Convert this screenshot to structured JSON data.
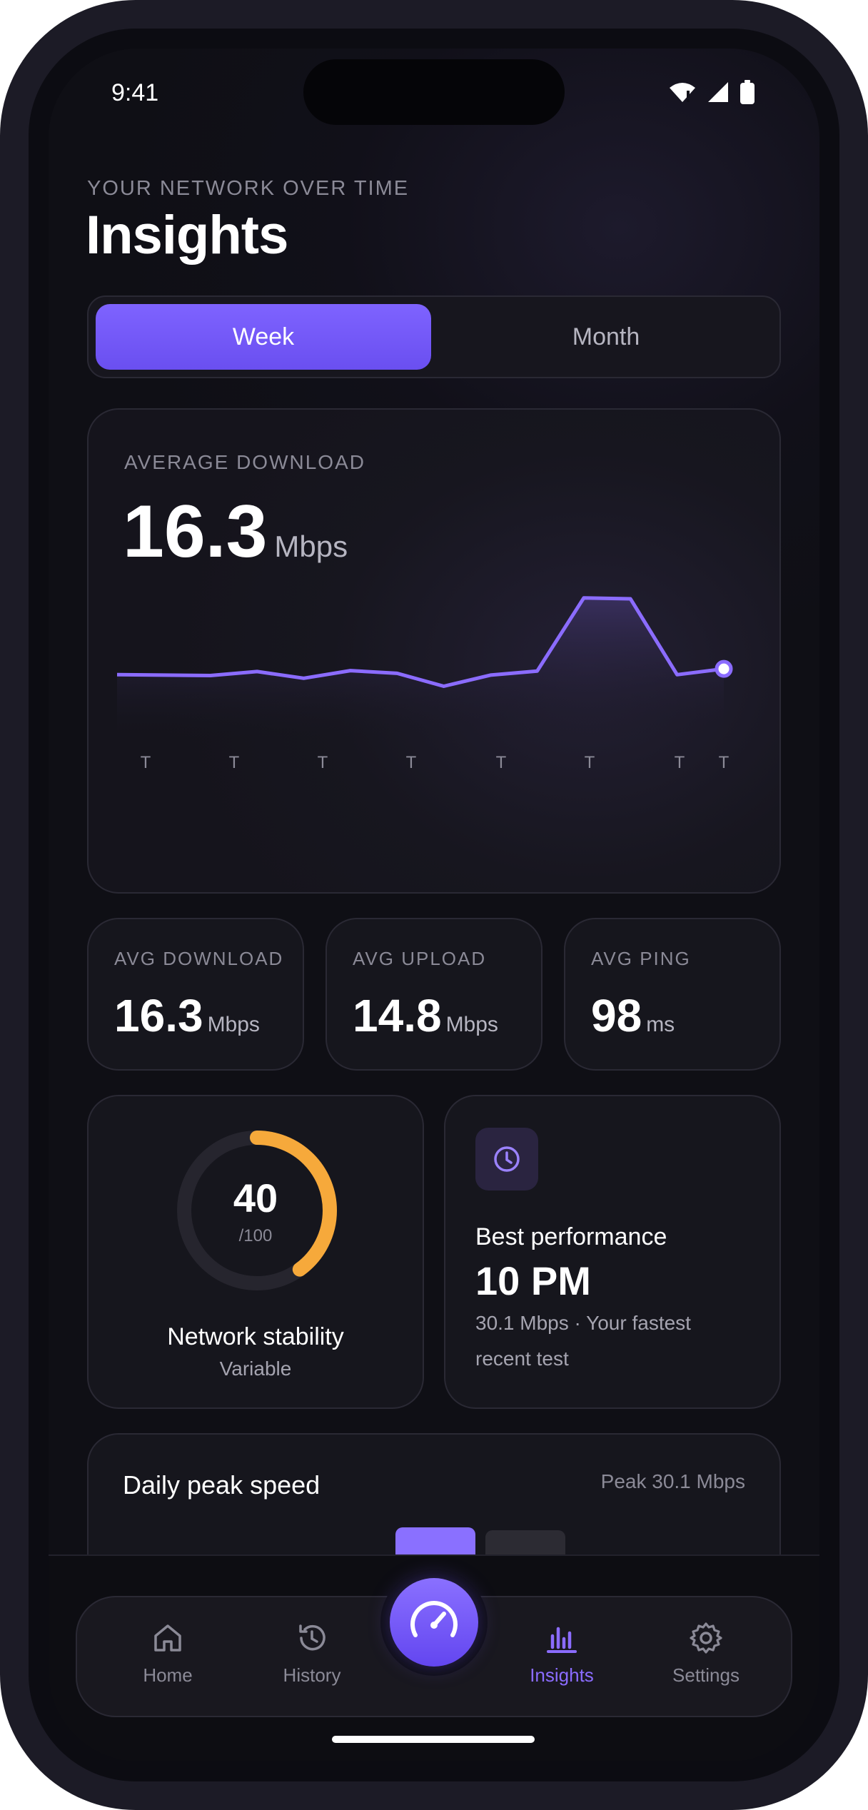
{
  "status_bar": {
    "time": "9:41"
  },
  "header": {
    "eyebrow": "YOUR NETWORK OVER TIME",
    "title": "Insights"
  },
  "period_toggle": {
    "options": [
      "Week",
      "Month"
    ],
    "selected": "Week"
  },
  "download_chart": {
    "label": "AVERAGE DOWNLOAD",
    "value": "16.3",
    "unit": "Mbps"
  },
  "chart_data": {
    "type": "line",
    "x_tick_labels": [
      "T",
      "T",
      "T",
      "T",
      "T",
      "T",
      "T",
      "T"
    ],
    "series": [
      {
        "values": [
          11.0,
          10.9,
          10.8,
          11.7,
          10.2,
          11.9,
          11.3,
          8.4,
          10.9,
          11.8,
          28.2,
          28.0,
          11.0,
          12.3
        ]
      }
    ],
    "ylim": [
      0,
      32
    ],
    "grid": false,
    "colors": {
      "line": "#8b6cff",
      "fill_top": "#3a3060",
      "end_point": "#ffffff"
    }
  },
  "stats": [
    {
      "label": "AVG DOWNLOAD",
      "value": "16.3",
      "unit": "Mbps"
    },
    {
      "label": "AVG UPLOAD",
      "value": "14.8",
      "unit": "Mbps"
    },
    {
      "label": "AVG PING",
      "value": "98",
      "unit": "ms"
    }
  ],
  "stability": {
    "score": "40",
    "max": "/100",
    "score_fraction": 0.4,
    "title": "Network stability",
    "status": "Variable",
    "ring_color": "#f6a93b"
  },
  "best_performance": {
    "icon": "clock-icon",
    "title": "Best performance",
    "time": "10 PM",
    "detail_line1": "30.1 Mbps · Your fastest",
    "detail_line2": "recent test"
  },
  "daily_peak": {
    "title": "Daily peak speed",
    "peak": "Peak 30.1 Mbps"
  },
  "tab_bar": {
    "tabs": [
      {
        "label": "Home",
        "icon": "home-icon"
      },
      {
        "label": "History",
        "icon": "history-icon"
      },
      {
        "label": "Insights",
        "icon": "bar-chart-icon",
        "active": true
      },
      {
        "label": "Settings",
        "icon": "gear-icon"
      }
    ],
    "center_action_icon": "speedometer-icon"
  },
  "colors": {
    "accent": "#7b5cff",
    "background": "#0f0f15",
    "card": "#17161e",
    "warning": "#f6a93b"
  }
}
